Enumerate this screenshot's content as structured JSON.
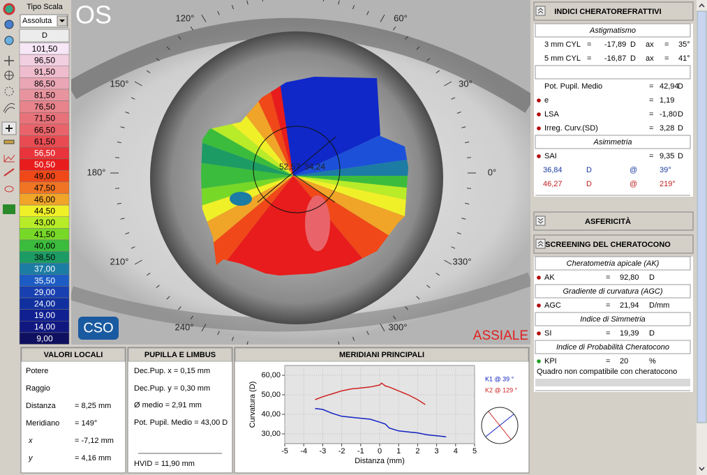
{
  "toolbar": {
    "scale_type_label": "Tipo Scala",
    "scale_type": "Assoluta",
    "unit": "D",
    "scale": [
      {
        "label": "101,50",
        "color": "#f6e6f6"
      },
      {
        "label": "96,50",
        "color": "#f2cfe0"
      },
      {
        "label": "91,50",
        "color": "#eebccc"
      },
      {
        "label": "86,50",
        "color": "#eaa6b4"
      },
      {
        "label": "81,50",
        "color": "#e8949e"
      },
      {
        "label": "76,50",
        "color": "#e8848c"
      },
      {
        "label": "71,50",
        "color": "#e8727a"
      },
      {
        "label": "66,50",
        "color": "#e8646a"
      },
      {
        "label": "61,50",
        "color": "#e84c52"
      },
      {
        "label": "56,50",
        "color": "#e8343a"
      },
      {
        "label": "50,50",
        "color": "#e81c1c"
      },
      {
        "label": "49,00",
        "color": "#f04818"
      },
      {
        "label": "47,50",
        "color": "#f07424"
      },
      {
        "label": "46,00",
        "color": "#f0a428"
      },
      {
        "label": "44,50",
        "color": "#f0f028"
      },
      {
        "label": "43,00",
        "color": "#b8ec28"
      },
      {
        "label": "41,50",
        "color": "#78d828"
      },
      {
        "label": "40,00",
        "color": "#3cbc3c"
      },
      {
        "label": "38,50",
        "color": "#1c9c64"
      },
      {
        "label": "37,00",
        "color": "#1c7ca4"
      },
      {
        "label": "35,50",
        "color": "#1c5cc4"
      },
      {
        "label": "29,00",
        "color": "#1840b0"
      },
      {
        "label": "24,00",
        "color": "#1030a0"
      },
      {
        "label": "19,00",
        "color": "#102090"
      },
      {
        "label": "14,00",
        "color": "#101880"
      },
      {
        "label": "9,00",
        "color": "#101060"
      }
    ]
  },
  "map": {
    "eye": "OS",
    "center_values": [
      "52,57",
      "34,24"
    ],
    "angle_labels": [
      "120°",
      "60°",
      "150°",
      "30°",
      "180°",
      "0°",
      "210°",
      "330°",
      "240°",
      "300°"
    ],
    "mode": "ASSIALE",
    "logo": "CSO"
  },
  "local_values": {
    "title": "VALORI LOCALI",
    "rows": [
      [
        "Potere"
      ],
      [
        "Raggio"
      ],
      [
        "Distanza",
        "= 8,25 mm"
      ],
      [
        "Meridiano",
        "= 149°"
      ],
      [
        "x",
        "= -7,12 mm"
      ],
      [
        "y",
        "= 4,16 mm"
      ]
    ]
  },
  "pupil": {
    "title": "PUPILLA E LIMBUS",
    "rows": [
      "Dec.Pup. x = 0,15 mm",
      "Dec.Pup. y = 0,30 mm",
      "Ø medio = 2,91 mm",
      "Pot. Pupil. Medio = 43,00 D"
    ],
    "hvid": "HVID = 11,90 mm"
  },
  "chart_data": {
    "type": "line",
    "title": "MERIDIANI PRINCIPALI",
    "x_label": "Distanza (mm)",
    "y_label": "Curvatura (D)",
    "xlim": [
      -5,
      5
    ],
    "xticks": [
      -5,
      -4,
      -3,
      -2,
      -1,
      0,
      1,
      2,
      3,
      4,
      5
    ],
    "ylim": [
      25,
      65
    ],
    "yticks": [
      {
        "value": 30,
        "label": "30,00"
      },
      {
        "value": 40,
        "label": "40,00"
      },
      {
        "value": 50,
        "label": "50,00"
      },
      {
        "value": 60,
        "label": "60,00"
      }
    ],
    "grid": true,
    "series": [
      {
        "name": "K1 @ 39 °",
        "color": "#1020c0",
        "x": [
          -3.4,
          -3,
          -2.5,
          -2,
          -1.5,
          -1,
          -0.5,
          0,
          0.3,
          0.5,
          1,
          1.5,
          2,
          2.5,
          3,
          3.5
        ],
        "values": [
          43,
          42.5,
          40.5,
          39,
          38.5,
          38,
          37.5,
          36,
          35,
          33,
          31.5,
          31,
          30.5,
          29.5,
          29,
          28.5
        ]
      },
      {
        "name": "K2 @ 129 °",
        "color": "#d02020",
        "x": [
          -3.4,
          -3,
          -2.5,
          -2,
          -1.5,
          -1,
          -0.5,
          0,
          0.1,
          0.3,
          0.5,
          1,
          1.5,
          2,
          2.4
        ],
        "values": [
          47.5,
          49,
          50.5,
          52,
          53,
          53.5,
          54,
          55,
          56,
          54.5,
          54,
          52,
          50,
          47.5,
          45
        ]
      }
    ]
  },
  "indices": {
    "panels": [
      {
        "title": "INDICI CHERATOREFRATTIVI",
        "groups": [
          {
            "heading": "Astigmatismo",
            "rows": [
              {
                "cells": [
                  "3 mm CYL",
                  "=",
                  "-17,89",
                  "D",
                  "ax",
                  "=",
                  "35°"
                ]
              },
              {
                "cells": [
                  "5 mm CYL",
                  "=",
                  "-16,87",
                  "D",
                  "ax",
                  "=",
                  "41°"
                ]
              }
            ]
          },
          {
            "rows": [
              {
                "cells": [
                  "Pot. Pupil. Medio",
                  "=",
                  "42,94",
                  "D"
                ]
              },
              {
                "bullet": "#b00000",
                "cells": [
                  "e",
                  "=",
                  "1,19"
                ]
              },
              {
                "bullet": "#b00000",
                "cells": [
                  "LSA",
                  "=",
                  "-1,80",
                  "D"
                ]
              },
              {
                "bullet": "#b00000",
                "cells": [
                  "Irreg. Curv.(SD)",
                  "=",
                  "3,28",
                  "D"
                ]
              }
            ]
          },
          {
            "heading": "Asimmetria",
            "rows": [
              {
                "bullet": "#b00000",
                "cells": [
                  "SAI",
                  "=",
                  "9,35",
                  "D"
                ]
              },
              {
                "color": "#1a3aa0",
                "cells": [
                  "36,84",
                  "D",
                  "@",
                  "39°"
                ]
              },
              {
                "color": "#c02020",
                "cells": [
                  "46,27",
                  "D",
                  "@",
                  "219°"
                ]
              }
            ]
          }
        ]
      },
      {
        "title": "ASFERICITÀ",
        "collapsed": true
      },
      {
        "title": "SCREENING DEL CHERATOCONO",
        "groups": [
          {
            "heading": "Cheratometria apicale (AK)",
            "rows": [
              {
                "bullet": "#b00000",
                "cells": [
                  "AK",
                  "=",
                  "92,80",
                  "D"
                ]
              }
            ]
          },
          {
            "heading": "Gradiente di curvatura  (AGC)",
            "rows": [
              {
                "bullet": "#b00000",
                "cells": [
                  "AGC",
                  "=",
                  "21,94",
                  "D/mm"
                ]
              }
            ]
          },
          {
            "heading": "Indice di Simmetria",
            "rows": [
              {
                "bullet": "#b00000",
                "cells": [
                  "SI",
                  "=",
                  "19,39",
                  "D"
                ]
              }
            ]
          },
          {
            "heading": "Indice di Probabilità Cheratocono",
            "rows": [
              {
                "bullet": "#20a020",
                "cells": [
                  "KPI",
                  "=",
                  "20",
                  "%"
                ]
              }
            ]
          }
        ],
        "verdict": "Quadro non compatibile con cheratocono"
      }
    ]
  }
}
